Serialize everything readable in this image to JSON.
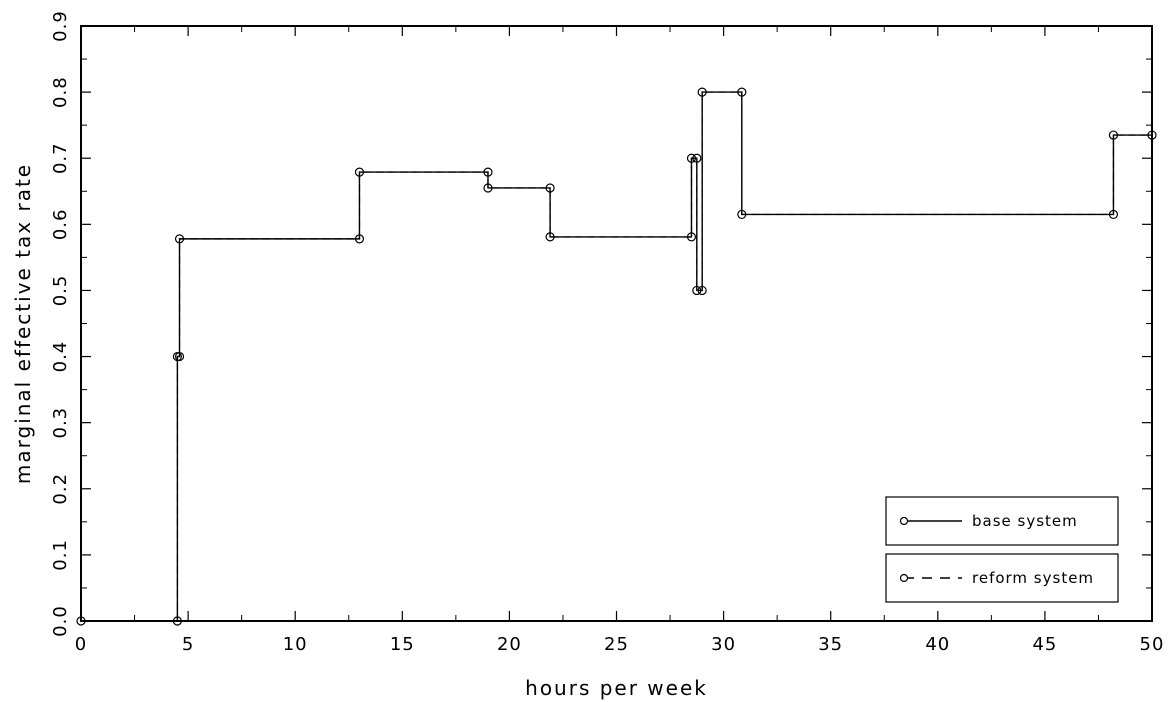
{
  "chart_data": {
    "type": "line",
    "title": "",
    "xlabel": "hours per week",
    "ylabel": "marginal effective tax rate",
    "xlim": [
      0,
      50
    ],
    "ylim": [
      0,
      0.9
    ],
    "x_ticks": [
      0,
      5,
      10,
      15,
      20,
      25,
      30,
      35,
      40,
      45,
      50
    ],
    "y_ticks": [
      0.0,
      0.1,
      0.2,
      0.3,
      0.4,
      0.5,
      0.6,
      0.7,
      0.8,
      0.9
    ],
    "x_tick_labels": [
      "0",
      "5",
      "10",
      "15",
      "20",
      "25",
      "30",
      "35",
      "40",
      "45",
      "50"
    ],
    "y_tick_labels": [
      "0.0",
      "0.1",
      "0.2",
      "0.3",
      "0.4",
      "0.5",
      "0.6",
      "0.7",
      "0.8",
      "0.9"
    ],
    "grid": false,
    "legend_position": "bottom-right",
    "series": [
      {
        "name": "base system",
        "style": "solid",
        "marker": "circle",
        "color": "#000000",
        "points": [
          [
            0,
            0
          ],
          [
            4.5,
            0
          ],
          [
            4.5,
            0.4
          ],
          [
            4.6,
            0.4
          ],
          [
            4.6,
            0.578
          ],
          [
            13,
            0.578
          ],
          [
            13,
            0.679
          ],
          [
            19,
            0.679
          ],
          [
            19,
            0.655
          ],
          [
            21.9,
            0.655
          ],
          [
            21.9,
            0.581
          ],
          [
            28.5,
            0.581
          ],
          [
            28.5,
            0.7
          ],
          [
            28.75,
            0.7
          ],
          [
            28.75,
            0.5
          ],
          [
            29,
            0.5
          ],
          [
            29,
            0.8
          ],
          [
            30.85,
            0.8
          ],
          [
            30.85,
            0.615
          ],
          [
            48.2,
            0.615
          ],
          [
            48.2,
            0.735
          ],
          [
            50,
            0.735
          ]
        ]
      },
      {
        "name": "reform system",
        "style": "dashed",
        "marker": "circle",
        "color": "#000000",
        "points": [
          [
            0,
            0
          ],
          [
            4.5,
            0
          ],
          [
            4.5,
            0.4
          ],
          [
            4.6,
            0.4
          ],
          [
            4.6,
            0.578
          ],
          [
            13,
            0.578
          ],
          [
            13,
            0.679
          ],
          [
            19,
            0.679
          ],
          [
            19,
            0.655
          ],
          [
            21.9,
            0.655
          ],
          [
            21.9,
            0.581
          ],
          [
            28.5,
            0.581
          ],
          [
            28.5,
            0.7
          ],
          [
            28.75,
            0.7
          ],
          [
            28.75,
            0.5
          ],
          [
            29,
            0.5
          ],
          [
            29,
            0.8
          ],
          [
            30.85,
            0.8
          ],
          [
            30.85,
            0.615
          ],
          [
            48.2,
            0.615
          ],
          [
            48.2,
            0.735
          ],
          [
            50,
            0.735
          ]
        ]
      }
    ]
  }
}
